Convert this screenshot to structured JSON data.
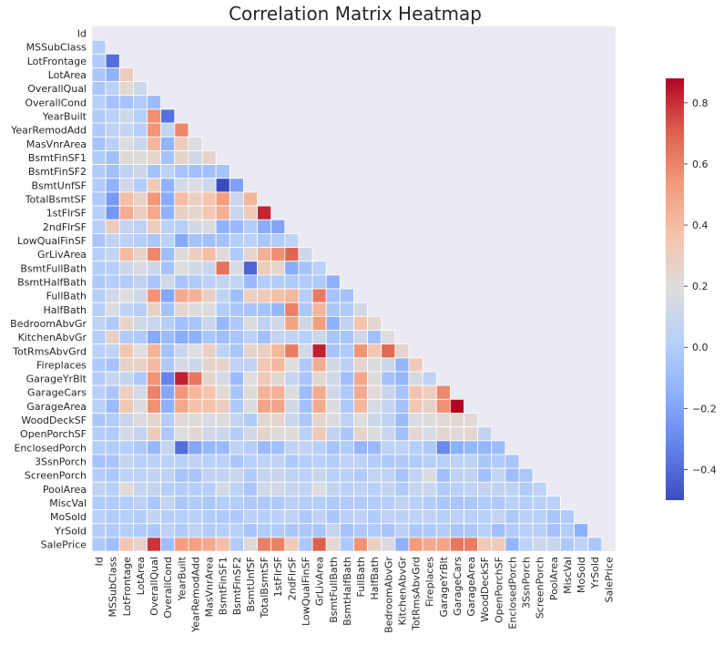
{
  "chart_data": {
    "type": "heatmap",
    "title": "Correlation Matrix Heatmap",
    "masked": "upper-triangle-and-diagonal",
    "labels": [
      "Id",
      "MSSubClass",
      "LotFrontage",
      "LotArea",
      "OverallQual",
      "OverallCond",
      "YearBuilt",
      "YearRemodAdd",
      "MasVnrArea",
      "BsmtFinSF1",
      "BsmtFinSF2",
      "BsmtUnfSF",
      "TotalBsmtSF",
      "1stFlrSF",
      "2ndFlrSF",
      "LowQualFinSF",
      "GrLivArea",
      "BsmtFullBath",
      "BsmtHalfBath",
      "FullBath",
      "HalfBath",
      "BedroomAbvGr",
      "KitchenAbvGr",
      "TotRmsAbvGrd",
      "Fireplaces",
      "GarageYrBlt",
      "GarageCars",
      "GarageArea",
      "WoodDeckSF",
      "OpenPorchSF",
      "EnclosedPorch",
      "3SsnPorch",
      "ScreenPorch",
      "PoolArea",
      "MiscVal",
      "MoSold",
      "YrSold",
      "SalePrice"
    ],
    "colorbar": {
      "min": -0.5,
      "max": 0.88,
      "ticks": [
        0.8,
        0.6,
        0.4,
        0.2,
        0.0,
        -0.2,
        -0.4
      ],
      "tick_labels": [
        "0.8",
        "0.6",
        "0.4",
        "0.2",
        "0.0",
        "−0.2",
        "−0.4"
      ]
    },
    "colormap": "coolwarm",
    "colors": {
      "mask_bg": "#eaeaf2",
      "grid": "#ffffff",
      "text": "#262626",
      "low": "#3b4cc0",
      "mid": "#dddddd",
      "high": "#b40426"
    },
    "notable": [
      {
        "row": "GarageArea",
        "col": "GarageCars",
        "value": 0.88
      },
      {
        "row": "TotRmsAbvGrd",
        "col": "GrLivArea",
        "value": 0.83
      },
      {
        "row": "1stFlrSF",
        "col": "TotalBsmtSF",
        "value": 0.82
      },
      {
        "row": "SalePrice",
        "col": "OverallQual",
        "value": 0.79
      },
      {
        "row": "BsmtUnfSF",
        "col": "BsmtFinSF1",
        "value": -0.5
      },
      {
        "row": "BsmtFullBath",
        "col": "BsmtUnfSF",
        "value": -0.42
      },
      {
        "row": "OverallCond",
        "col": "YearBuilt",
        "value": -0.38
      }
    ],
    "values": [
      [],
      [
        0.01
      ],
      [
        -0.01,
        -0.39
      ],
      [
        -0.03,
        -0.14,
        0.31
      ],
      [
        -0.03,
        0.03,
        0.23,
        0.11
      ],
      [
        0.01,
        -0.06,
        -0.06,
        -0.01,
        -0.09
      ],
      [
        -0.01,
        0.03,
        0.12,
        0.01,
        0.57,
        -0.38
      ],
      [
        -0.02,
        0.04,
        0.08,
        0.01,
        0.55,
        0.07,
        0.59
      ],
      [
        -0.05,
        0.02,
        0.18,
        0.1,
        0.41,
        -0.13,
        0.31,
        0.18
      ],
      [
        -0.01,
        -0.07,
        0.21,
        0.21,
        0.24,
        -0.05,
        0.25,
        0.13,
        0.26
      ],
      [
        -0.01,
        -0.07,
        0.04,
        0.11,
        -0.06,
        0.04,
        -0.05,
        -0.07,
        -0.07,
        -0.05
      ],
      [
        -0.01,
        -0.14,
        0.13,
        -0.0,
        0.31,
        -0.14,
        0.15,
        0.18,
        0.11,
        -0.5,
        -0.21
      ],
      [
        -0.02,
        -0.24,
        0.39,
        0.26,
        0.54,
        -0.17,
        0.39,
        0.29,
        0.36,
        0.52,
        0.1,
        0.42
      ],
      [
        0.01,
        -0.25,
        0.46,
        0.3,
        0.48,
        -0.14,
        0.28,
        0.24,
        0.34,
        0.45,
        0.1,
        0.32,
        0.82
      ],
      [
        0.01,
        0.31,
        0.08,
        0.05,
        0.3,
        0.03,
        0.01,
        0.14,
        0.17,
        -0.14,
        -0.1,
        0.0,
        -0.17,
        -0.2
      ],
      [
        -0.04,
        0.05,
        0.04,
        0.0,
        -0.03,
        0.03,
        -0.18,
        -0.06,
        -0.07,
        -0.06,
        0.01,
        0.03,
        -0.03,
        -0.01,
        0.06
      ],
      [
        0.01,
        0.07,
        0.4,
        0.26,
        0.59,
        -0.08,
        0.2,
        0.29,
        0.39,
        0.21,
        -0.01,
        0.24,
        0.45,
        0.57,
        0.69,
        0.13
      ],
      [
        0.0,
        0.0,
        0.1,
        0.16,
        0.11,
        -0.05,
        0.19,
        0.12,
        0.09,
        0.65,
        0.16,
        -0.42,
        0.31,
        0.24,
        -0.17,
        -0.05,
        0.03
      ],
      [
        -0.02,
        -0.0,
        -0.01,
        0.05,
        -0.04,
        0.12,
        -0.04,
        -0.01,
        0.03,
        0.07,
        0.07,
        -0.1,
        -0.0,
        0.0,
        -0.02,
        -0.01,
        -0.02,
        -0.15
      ],
      [
        0.01,
        0.13,
        0.2,
        0.13,
        0.55,
        -0.19,
        0.47,
        0.44,
        0.28,
        0.06,
        -0.08,
        0.29,
        0.32,
        0.38,
        0.42,
        -0.0,
        0.63,
        -0.06,
        -0.05
      ],
      [
        0.01,
        0.18,
        0.05,
        0.01,
        0.27,
        -0.06,
        0.24,
        0.18,
        0.2,
        0.0,
        -0.03,
        -0.04,
        -0.05,
        -0.12,
        0.61,
        -0.03,
        0.42,
        -0.03,
        -0.01,
        0.14
      ],
      [
        0.04,
        -0.02,
        0.26,
        0.12,
        0.1,
        0.01,
        -0.07,
        -0.04,
        0.1,
        -0.11,
        -0.02,
        0.17,
        0.05,
        0.13,
        0.5,
        0.11,
        0.52,
        -0.15,
        0.05,
        0.36,
        0.23
      ],
      [
        0.0,
        0.28,
        -0.01,
        -0.02,
        -0.18,
        -0.09,
        -0.17,
        -0.15,
        -0.04,
        -0.08,
        -0.04,
        0.03,
        -0.07,
        0.07,
        0.06,
        0.01,
        0.1,
        -0.04,
        -0.04,
        0.13,
        -0.07,
        0.2
      ],
      [
        0.03,
        0.04,
        0.35,
        0.19,
        0.43,
        -0.06,
        0.1,
        0.19,
        0.28,
        0.04,
        -0.04,
        0.25,
        0.29,
        0.41,
        0.62,
        0.13,
        0.83,
        -0.05,
        -0.02,
        0.55,
        0.34,
        0.68,
        0.26
      ],
      [
        -0.02,
        -0.05,
        0.27,
        0.27,
        0.4,
        -0.02,
        0.15,
        0.11,
        0.25,
        0.26,
        0.05,
        0.05,
        0.34,
        0.41,
        0.19,
        -0.02,
        0.46,
        0.14,
        0.03,
        0.24,
        0.2,
        0.11,
        -0.12,
        0.33
      ],
      [
        0.0,
        0.09,
        0.07,
        -0.02,
        0.55,
        -0.32,
        0.83,
        0.64,
        0.25,
        0.15,
        -0.09,
        0.19,
        0.32,
        0.23,
        0.07,
        -0.04,
        0.23,
        0.12,
        -0.08,
        0.48,
        0.2,
        -0.06,
        -0.12,
        0.15,
        0.05
      ],
      [
        0.02,
        -0.04,
        0.29,
        0.15,
        0.6,
        -0.19,
        0.54,
        0.42,
        0.36,
        0.22,
        -0.04,
        0.21,
        0.43,
        0.44,
        0.18,
        -0.09,
        0.47,
        0.13,
        -0.02,
        0.47,
        0.22,
        0.09,
        -0.05,
        0.36,
        0.3,
        0.59
      ],
      [
        0.02,
        -0.1,
        0.34,
        0.18,
        0.56,
        -0.15,
        0.48,
        0.37,
        0.37,
        0.3,
        -0.02,
        0.18,
        0.49,
        0.49,
        0.14,
        -0.07,
        0.47,
        0.18,
        -0.02,
        0.41,
        0.16,
        0.07,
        -0.06,
        0.34,
        0.27,
        0.56,
        0.88
      ],
      [
        -0.03,
        -0.01,
        0.09,
        0.17,
        0.24,
        -0.0,
        0.22,
        0.21,
        0.16,
        0.2,
        0.07,
        -0.01,
        0.23,
        0.24,
        0.09,
        -0.03,
        0.25,
        0.18,
        0.04,
        0.19,
        0.11,
        0.05,
        -0.09,
        0.17,
        0.2,
        0.22,
        0.23,
        0.22
      ],
      [
        -0.0,
        -0.01,
        0.15,
        0.08,
        0.31,
        -0.03,
        0.19,
        0.23,
        0.13,
        0.11,
        0.0,
        0.13,
        0.25,
        0.21,
        0.21,
        0.02,
        0.33,
        0.06,
        -0.03,
        0.26,
        0.2,
        0.09,
        -0.07,
        0.23,
        0.16,
        0.23,
        0.21,
        0.24,
        0.06
      ],
      [
        0.0,
        -0.01,
        0.01,
        -0.02,
        -0.11,
        0.07,
        -0.39,
        -0.19,
        -0.11,
        -0.1,
        0.04,
        -0.0,
        -0.1,
        -0.07,
        0.06,
        0.06,
        0.01,
        -0.05,
        -0.01,
        -0.12,
        -0.1,
        0.04,
        0.04,
        0.0,
        -0.02,
        -0.3,
        -0.15,
        -0.12,
        -0.13,
        -0.09
      ],
      [
        -0.05,
        -0.04,
        0.07,
        0.02,
        0.03,
        0.03,
        0.03,
        0.05,
        0.02,
        0.03,
        -0.03,
        0.02,
        0.04,
        0.06,
        -0.02,
        -0.0,
        0.02,
        -0.0,
        0.04,
        0.04,
        -0.0,
        -0.02,
        -0.02,
        -0.01,
        0.01,
        0.02,
        0.04,
        0.04,
        -0.03,
        -0.01,
        -0.04
      ],
      [
        0.0,
        -0.03,
        0.04,
        0.04,
        0.06,
        0.05,
        -0.05,
        -0.04,
        0.06,
        0.06,
        0.09,
        -0.01,
        0.08,
        0.09,
        0.04,
        0.03,
        0.1,
        0.02,
        0.03,
        -0.01,
        0.07,
        0.04,
        -0.05,
        0.06,
        0.18,
        -0.08,
        0.05,
        0.05,
        -0.07,
        0.07,
        -0.08,
        -0.03
      ],
      [
        0.06,
        0.01,
        0.21,
        0.08,
        0.07,
        -0.0,
        0.0,
        0.01,
        0.01,
        0.14,
        0.04,
        -0.04,
        0.13,
        0.13,
        0.08,
        0.06,
        0.17,
        0.07,
        0.02,
        0.05,
        0.02,
        0.07,
        -0.01,
        0.08,
        0.1,
        -0.01,
        0.02,
        0.06,
        0.07,
        0.06,
        0.05,
        -0.01,
        0.05
      ],
      [
        -0.01,
        -0.01,
        0.0,
        0.04,
        -0.03,
        0.07,
        -0.03,
        -0.01,
        -0.03,
        0.0,
        0.0,
        -0.02,
        -0.02,
        -0.02,
        0.02,
        -0.0,
        -0.0,
        -0.02,
        -0.01,
        -0.01,
        0.0,
        0.01,
        0.06,
        0.02,
        0.0,
        -0.03,
        -0.04,
        -0.03,
        -0.01,
        -0.02,
        0.02,
        0.0,
        0.03,
        0.03
      ],
      [
        0.02,
        -0.01,
        0.01,
        0.0,
        0.07,
        -0.0,
        0.01,
        0.02,
        -0.01,
        -0.02,
        -0.02,
        0.03,
        0.01,
        0.03,
        0.04,
        -0.02,
        0.05,
        -0.03,
        0.03,
        0.06,
        -0.01,
        0.05,
        0.03,
        0.04,
        0.05,
        0.01,
        0.04,
        0.03,
        0.02,
        0.07,
        -0.03,
        0.03,
        0.02,
        -0.03,
        -0.01
      ],
      [
        0.0,
        -0.02,
        0.01,
        -0.01,
        -0.03,
        0.04,
        -0.01,
        0.04,
        -0.01,
        0.01,
        0.03,
        -0.04,
        -0.01,
        -0.01,
        -0.03,
        -0.03,
        -0.04,
        0.07,
        -0.05,
        -0.02,
        -0.01,
        -0.04,
        0.03,
        -0.03,
        -0.02,
        -0.0,
        -0.04,
        -0.03,
        0.02,
        -0.08,
        -0.01,
        0.02,
        0.01,
        -0.06,
        0.0,
        -0.15
      ],
      [
        -0.02,
        -0.08,
        0.35,
        0.26,
        0.79,
        -0.08,
        0.52,
        0.51,
        0.48,
        0.39,
        -0.01,
        0.21,
        0.61,
        0.61,
        0.32,
        -0.03,
        0.71,
        0.23,
        -0.02,
        0.56,
        0.28,
        0.17,
        -0.14,
        0.53,
        0.47,
        0.49,
        0.64,
        0.62,
        0.32,
        0.32,
        -0.13,
        0.04,
        0.11,
        0.09,
        -0.02,
        0.05,
        -0.03
      ]
    ]
  }
}
